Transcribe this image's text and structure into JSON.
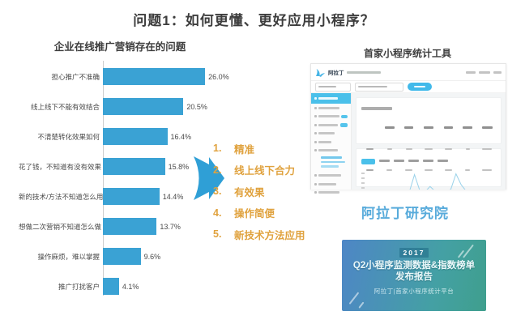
{
  "page": {
    "title": "问题1：如何更懂、更好应用小程序？"
  },
  "chart_data": {
    "type": "bar",
    "orientation": "horizontal",
    "title": "企业在线推广营销存在的问题",
    "categories": [
      "担心推广不准确",
      "线上线下不能有效结合",
      "不清楚转化效果如何",
      "花了钱，不知道有没有效果",
      "新的技术/方法不知道怎么用",
      "想做二次营销不知道怎么做",
      "操作麻烦，难以掌握",
      "推广打扰客户"
    ],
    "values": [
      26.0,
      20.5,
      16.4,
      15.8,
      14.4,
      13.7,
      9.6,
      4.1
    ],
    "value_labels": [
      "26.0%",
      "20.5%",
      "16.4%",
      "15.8%",
      "14.4%",
      "13.7%",
      "9.6%",
      "4.1%"
    ],
    "xlim": [
      0,
      28
    ],
    "grid": false,
    "bar_color": "#3aa2d4"
  },
  "solutions": {
    "items": [
      "精准",
      "线上线下合力",
      "有效果",
      "操作简便",
      "新技术方法应用"
    ],
    "color": "#e0a23e"
  },
  "tool": {
    "title": "首家小程序统计工具",
    "brand": "阿拉丁研究院",
    "dashboard": {
      "logo_text": "阿拉丁",
      "sparkline": [
        3,
        4,
        9,
        13,
        8,
        4,
        3,
        3,
        4,
        86,
        12,
        4,
        30,
        7,
        4,
        6,
        16,
        90,
        38,
        7,
        3,
        3,
        3,
        4,
        4,
        11
      ]
    }
  },
  "badge": {
    "year": "2017",
    "title": "Q2小程序监测数据&指数榜单发布报告",
    "subtitle": "阿拉丁|首家小程序统计平台",
    "gradient": [
      "#4e86c6",
      "#3f9f8d"
    ]
  },
  "colors": {
    "bar_blue": "#3aa2d4",
    "accent_blue": "#45b9e8",
    "orange": "#e0a23e",
    "brand_blue": "#58abdb",
    "title_text": "#3d3d3d"
  }
}
